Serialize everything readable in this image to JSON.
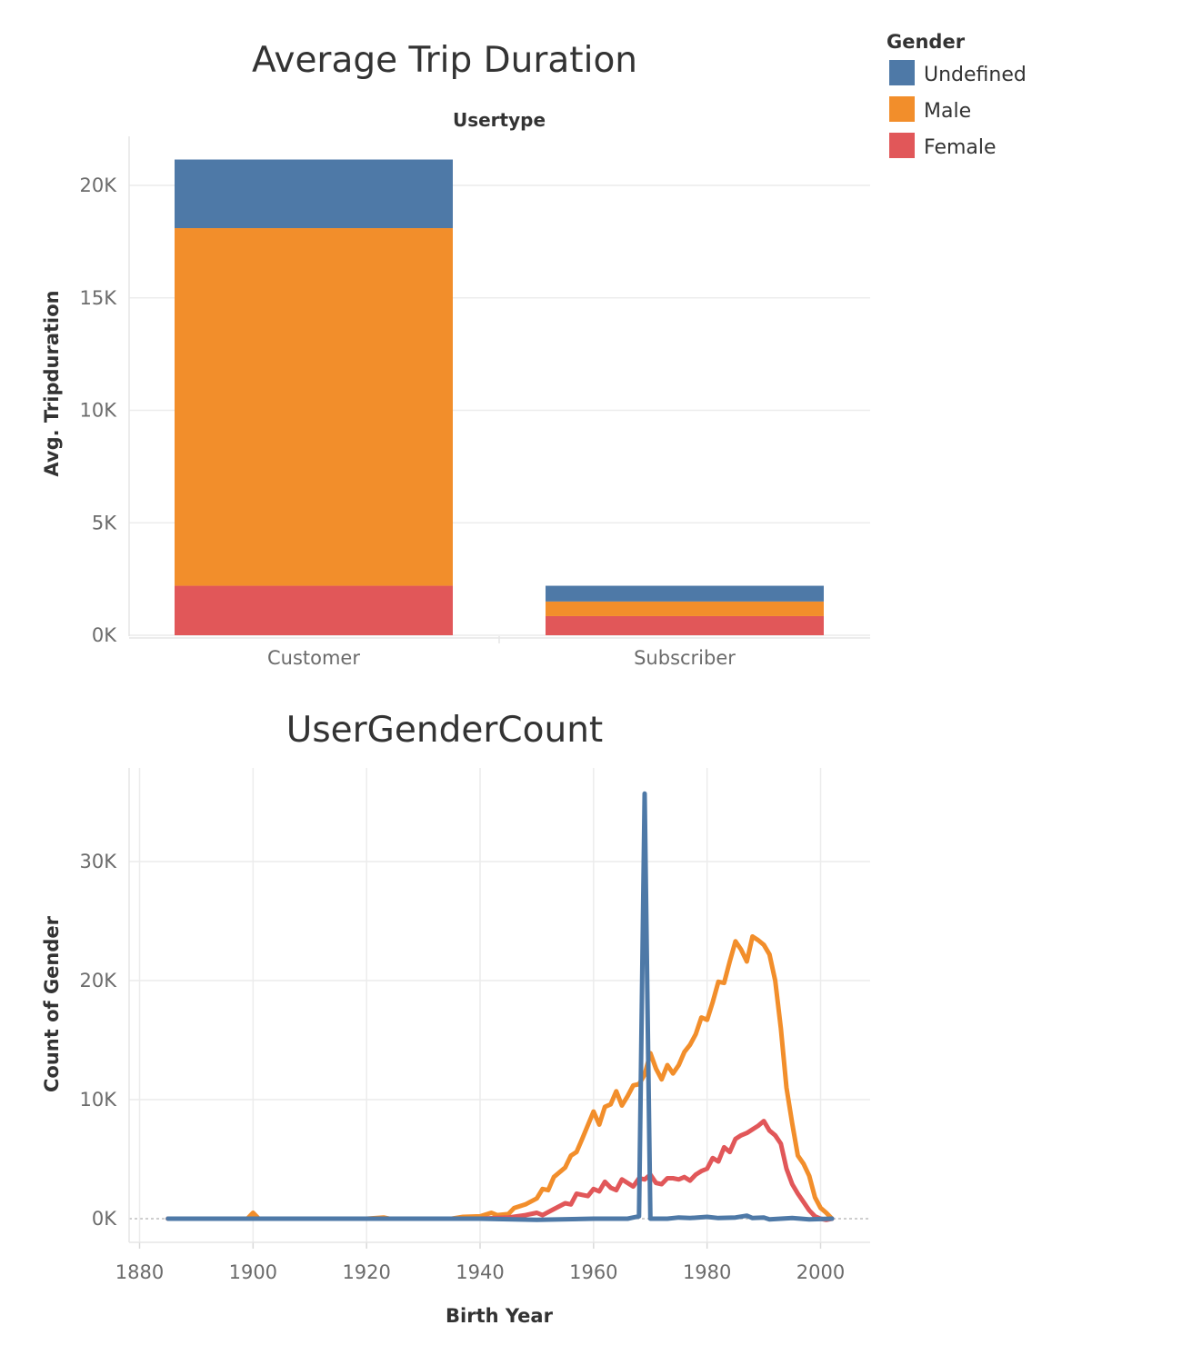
{
  "legend": {
    "title": "Gender",
    "items": [
      {
        "label": "Undefined",
        "color": "#4e79a7"
      },
      {
        "label": "Male",
        "color": "#f28e2b"
      },
      {
        "label": "Female",
        "color": "#e15759"
      }
    ]
  },
  "chart_data": [
    {
      "type": "bar",
      "stacked": true,
      "title": "Average Trip Duration",
      "facet_header": "Usertype",
      "ylabel": "Avg. Tripduration",
      "xlabel": "",
      "categories": [
        "Customer",
        "Subscriber"
      ],
      "ylim": [
        0,
        22000
      ],
      "yticks": [
        0,
        5000,
        10000,
        15000,
        20000
      ],
      "ytick_labels": [
        "0K",
        "5K",
        "10K",
        "15K",
        "20K"
      ],
      "grid": true,
      "series": [
        {
          "name": "Female",
          "color": "#e15759",
          "values": [
            2200,
            850
          ]
        },
        {
          "name": "Male",
          "color": "#f28e2b",
          "values": [
            15900,
            650
          ]
        },
        {
          "name": "Undefined",
          "color": "#4e79a7",
          "values": [
            3050,
            700
          ]
        }
      ]
    },
    {
      "type": "line",
      "title": "UserGenderCount",
      "xlabel": "Birth Year",
      "ylabel": "Count of Gender",
      "xlim": [
        1877,
        2009
      ],
      "ylim": [
        -2500,
        38000
      ],
      "xticks": [
        1880,
        1900,
        1920,
        1940,
        1960,
        1980,
        2000
      ],
      "yticks": [
        0,
        10000,
        20000,
        30000
      ],
      "ytick_labels": [
        "0K",
        "10K",
        "20K",
        "30K"
      ],
      "grid": true,
      "series": [
        {
          "name": "Undefined",
          "color": "#4e79a7",
          "points": [
            [
              1885,
              0
            ],
            [
              1900,
              0
            ],
            [
              1920,
              0
            ],
            [
              1940,
              0
            ],
            [
              1950,
              -100
            ],
            [
              1960,
              0
            ],
            [
              1966,
              0
            ],
            [
              1967,
              100
            ],
            [
              1968,
              200
            ],
            [
              1969,
              35700
            ],
            [
              1970,
              0
            ],
            [
              1973,
              0
            ],
            [
              1975,
              100
            ],
            [
              1977,
              50
            ],
            [
              1980,
              150
            ],
            [
              1982,
              50
            ],
            [
              1985,
              100
            ],
            [
              1987,
              250
            ],
            [
              1988,
              50
            ],
            [
              1990,
              100
            ],
            [
              1991,
              -50
            ],
            [
              1993,
              0
            ],
            [
              1995,
              50
            ],
            [
              1998,
              -50
            ],
            [
              2002,
              0
            ]
          ]
        },
        {
          "name": "Male",
          "color": "#f28e2b",
          "points": [
            [
              1885,
              0
            ],
            [
              1899,
              0
            ],
            [
              1900,
              500
            ],
            [
              1901,
              0
            ],
            [
              1920,
              0
            ],
            [
              1923,
              100
            ],
            [
              1924,
              0
            ],
            [
              1935,
              0
            ],
            [
              1937,
              150
            ],
            [
              1940,
              200
            ],
            [
              1942,
              500
            ],
            [
              1943,
              300
            ],
            [
              1945,
              400
            ],
            [
              1946,
              900
            ],
            [
              1948,
              1200
            ],
            [
              1950,
              1700
            ],
            [
              1951,
              2500
            ],
            [
              1952,
              2400
            ],
            [
              1953,
              3500
            ],
            [
              1955,
              4300
            ],
            [
              1956,
              5300
            ],
            [
              1957,
              5600
            ],
            [
              1958,
              6700
            ],
            [
              1960,
              9000
            ],
            [
              1961,
              7900
            ],
            [
              1962,
              9400
            ],
            [
              1963,
              9600
            ],
            [
              1964,
              10700
            ],
            [
              1965,
              9500
            ],
            [
              1966,
              10300
            ],
            [
              1967,
              11200
            ],
            [
              1968,
              11300
            ],
            [
              1969,
              12100
            ],
            [
              1970,
              13900
            ],
            [
              1971,
              12600
            ],
            [
              1972,
              11700
            ],
            [
              1973,
              12900
            ],
            [
              1974,
              12200
            ],
            [
              1975,
              12900
            ],
            [
              1976,
              14000
            ],
            [
              1977,
              14600
            ],
            [
              1978,
              15500
            ],
            [
              1979,
              16900
            ],
            [
              1980,
              16700
            ],
            [
              1981,
              18200
            ],
            [
              1982,
              19900
            ],
            [
              1983,
              19800
            ],
            [
              1984,
              21600
            ],
            [
              1985,
              23300
            ],
            [
              1986,
              22600
            ],
            [
              1987,
              21600
            ],
            [
              1988,
              23700
            ],
            [
              1989,
              23400
            ],
            [
              1990,
              23000
            ],
            [
              1991,
              22200
            ],
            [
              1992,
              20000
            ],
            [
              1993,
              16000
            ],
            [
              1994,
              11000
            ],
            [
              1995,
              8000
            ],
            [
              1996,
              5300
            ],
            [
              1997,
              4600
            ],
            [
              1998,
              3600
            ],
            [
              1999,
              1800
            ],
            [
              2000,
              900
            ],
            [
              2001,
              500
            ],
            [
              2002,
              0
            ]
          ]
        },
        {
          "name": "Female",
          "color": "#e15759",
          "points": [
            [
              1885,
              0
            ],
            [
              1900,
              0
            ],
            [
              1920,
              0
            ],
            [
              1940,
              0
            ],
            [
              1945,
              100
            ],
            [
              1948,
              300
            ],
            [
              1950,
              500
            ],
            [
              1951,
              300
            ],
            [
              1953,
              800
            ],
            [
              1955,
              1300
            ],
            [
              1956,
              1200
            ],
            [
              1957,
              2100
            ],
            [
              1958,
              2000
            ],
            [
              1959,
              1900
            ],
            [
              1960,
              2500
            ],
            [
              1961,
              2300
            ],
            [
              1962,
              3100
            ],
            [
              1963,
              2600
            ],
            [
              1964,
              2400
            ],
            [
              1965,
              3300
            ],
            [
              1966,
              3000
            ],
            [
              1967,
              2700
            ],
            [
              1968,
              3400
            ],
            [
              1969,
              3300
            ],
            [
              1970,
              3700
            ],
            [
              1971,
              3000
            ],
            [
              1972,
              2900
            ],
            [
              1973,
              3400
            ],
            [
              1974,
              3400
            ],
            [
              1975,
              3300
            ],
            [
              1976,
              3500
            ],
            [
              1977,
              3200
            ],
            [
              1978,
              3700
            ],
            [
              1979,
              4000
            ],
            [
              1980,
              4200
            ],
            [
              1981,
              5100
            ],
            [
              1982,
              4800
            ],
            [
              1983,
              6000
            ],
            [
              1984,
              5600
            ],
            [
              1985,
              6700
            ],
            [
              1986,
              7000
            ],
            [
              1987,
              7200
            ],
            [
              1988,
              7500
            ],
            [
              1989,
              7800
            ],
            [
              1990,
              8200
            ],
            [
              1991,
              7400
            ],
            [
              1992,
              7000
            ],
            [
              1993,
              6300
            ],
            [
              1994,
              4200
            ],
            [
              1995,
              2900
            ],
            [
              1996,
              2100
            ],
            [
              1997,
              1400
            ],
            [
              1998,
              700
            ],
            [
              1999,
              200
            ],
            [
              2000,
              0
            ],
            [
              2001,
              -100
            ],
            [
              2002,
              0
            ]
          ]
        }
      ]
    }
  ]
}
